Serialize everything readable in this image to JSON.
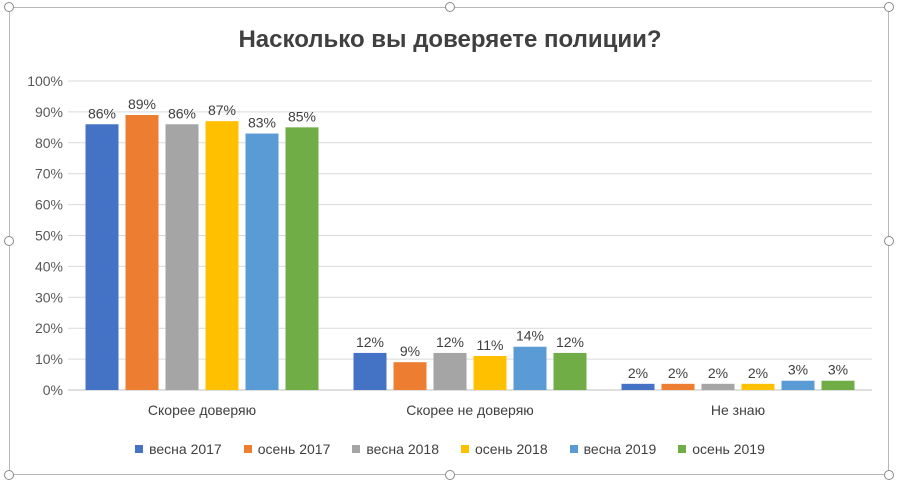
{
  "chart_data": {
    "type": "bar",
    "title": "Насколько вы доверяете полиции?",
    "categories": [
      "Скорее доверяю",
      "Скорее не доверяю",
      "Не знаю"
    ],
    "series": [
      {
        "name": "весна 2017",
        "color": "#4472c4",
        "values": [
          86,
          12,
          2
        ],
        "labels": [
          "86%",
          "12%",
          "2%"
        ]
      },
      {
        "name": "осень 2017",
        "color": "#ed7d31",
        "values": [
          89,
          9,
          2
        ],
        "labels": [
          "89%",
          "9%",
          "2%"
        ]
      },
      {
        "name": "весна 2018",
        "color": "#a5a5a5",
        "values": [
          86,
          12,
          2
        ],
        "labels": [
          "86%",
          "12%",
          "2%"
        ]
      },
      {
        "name": "осень 2018",
        "color": "#ffc000",
        "values": [
          87,
          11,
          2
        ],
        "labels": [
          "87%",
          "11%",
          "2%"
        ]
      },
      {
        "name": "весна 2019",
        "color": "#5b9bd5",
        "values": [
          83,
          14,
          3
        ],
        "labels": [
          "83%",
          "14%",
          "3%"
        ]
      },
      {
        "name": "осень 2019",
        "color": "#70ad47",
        "values": [
          85,
          12,
          3
        ],
        "labels": [
          "85%",
          "12%",
          "3%"
        ]
      }
    ],
    "ylim": [
      0,
      100
    ],
    "yticks": [
      "0%",
      "10%",
      "20%",
      "30%",
      "40%",
      "50%",
      "60%",
      "70%",
      "80%",
      "90%",
      "100%"
    ],
    "grid": true,
    "legend_position": "bottom"
  }
}
